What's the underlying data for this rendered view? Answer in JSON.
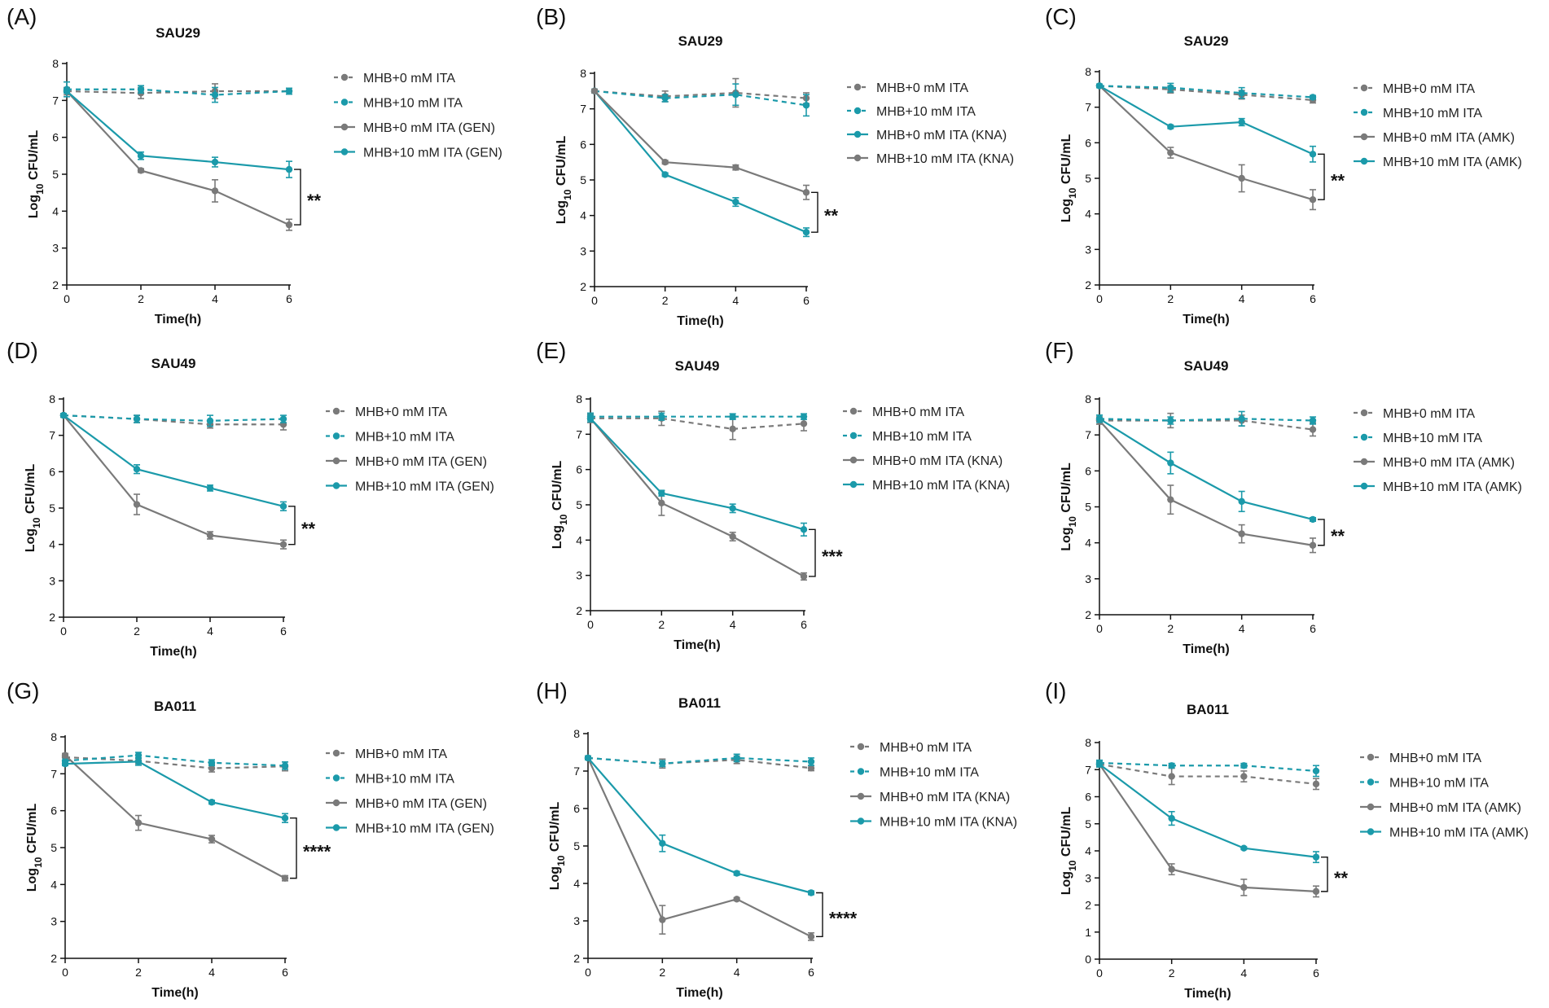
{
  "colors": {
    "gray": "#7a7a7a",
    "teal": "#1b9aaa",
    "axis": "#111111"
  },
  "chart_data": [
    {
      "panel": "(A)",
      "type": "line",
      "title": "SAU29",
      "xlabel": "Time(h)",
      "ylabel_main": "Log",
      "ylabel_sub": "10",
      "ylabel_tail": " CFU/mL",
      "x": [
        0,
        2,
        4,
        6
      ],
      "xlim": [
        0,
        6
      ],
      "ylim": [
        2,
        8
      ],
      "xticks": [
        "0",
        "2",
        "4",
        "6"
      ],
      "yticks": [
        "2",
        "3",
        "4",
        "5",
        "6",
        "7",
        "8"
      ],
      "series": [
        {
          "name": "MHB+0 mM ITA",
          "color": "gray",
          "dashed": true,
          "values": [
            7.25,
            7.2,
            7.25,
            7.25
          ],
          "errors": [
            0.1,
            0.15,
            0.2,
            0.08
          ]
        },
        {
          "name": "MHB+10 mM ITA",
          "color": "teal",
          "dashed": true,
          "values": [
            7.3,
            7.3,
            7.15,
            7.25
          ],
          "errors": [
            0.2,
            0.1,
            0.2,
            0.08
          ]
        },
        {
          "name": "MHB+0 mM ITA (GEN)",
          "color": "gray",
          "dashed": false,
          "values": [
            7.25,
            5.1,
            4.55,
            3.63
          ],
          "errors": [
            0.05,
            0.05,
            0.3,
            0.15
          ]
        },
        {
          "name": "MHB+10 mM ITA (GEN)",
          "color": "teal",
          "dashed": false,
          "values": [
            7.25,
            5.5,
            5.33,
            5.13
          ],
          "errors": [
            0.05,
            0.1,
            0.13,
            0.22
          ]
        }
      ],
      "significance": "**",
      "sig_between": [
        2,
        3
      ]
    },
    {
      "panel": "(B)",
      "type": "line",
      "title": "SAU29",
      "xlabel": "Time(h)",
      "ylabel_main": "Log",
      "ylabel_sub": "10",
      "ylabel_tail": " CFU/mL",
      "x": [
        0,
        2,
        4,
        6
      ],
      "xlim": [
        0,
        6
      ],
      "ylim": [
        2,
        8
      ],
      "xticks": [
        "0",
        "2",
        "4",
        "6"
      ],
      "yticks": [
        "2",
        "3",
        "4",
        "5",
        "6",
        "7",
        "8"
      ],
      "series": [
        {
          "name": "MHB+0 mM ITA",
          "color": "gray",
          "dashed": true,
          "values": [
            7.5,
            7.35,
            7.45,
            7.3
          ],
          "errors": [
            0.05,
            0.15,
            0.4,
            0.15
          ]
        },
        {
          "name": "MHB+10 mM ITA",
          "color": "teal",
          "dashed": true,
          "values": [
            7.5,
            7.3,
            7.4,
            7.1
          ],
          "errors": [
            0.05,
            0.1,
            0.3,
            0.3
          ]
        },
        {
          "name": "MHB+0 mM ITA (KNA)",
          "color": "teal",
          "dashed": false,
          "values": [
            7.5,
            5.15,
            4.38,
            3.53
          ],
          "errors": [
            0.05,
            0.05,
            0.12,
            0.12
          ]
        },
        {
          "name": "MHB+10 mM ITA (KNA)",
          "color": "gray",
          "dashed": false,
          "values": [
            7.5,
            5.5,
            5.35,
            4.65
          ],
          "errors": [
            0.05,
            0.05,
            0.07,
            0.2
          ]
        }
      ],
      "significance": "**",
      "sig_between": [
        2,
        3
      ]
    },
    {
      "panel": "(C)",
      "type": "line",
      "title": "SAU29",
      "xlabel": "Time(h)",
      "ylabel_main": "Log",
      "ylabel_sub": "10",
      "ylabel_tail": " CFU/mL",
      "x": [
        0,
        2,
        4,
        6
      ],
      "xlim": [
        0,
        6
      ],
      "ylim": [
        2,
        8
      ],
      "xticks": [
        "0",
        "2",
        "4",
        "6"
      ],
      "yticks": [
        "2",
        "3",
        "4",
        "5",
        "6",
        "7",
        "8"
      ],
      "series": [
        {
          "name": "MHB+0 mM ITA",
          "color": "gray",
          "dashed": true,
          "values": [
            7.6,
            7.5,
            7.35,
            7.2
          ],
          "errors": [
            0.05,
            0.1,
            0.12,
            0.08
          ]
        },
        {
          "name": "MHB+10 mM ITA",
          "color": "teal",
          "dashed": true,
          "values": [
            7.6,
            7.55,
            7.4,
            7.28
          ],
          "errors": [
            0.05,
            0.12,
            0.15,
            0.05
          ]
        },
        {
          "name": "MHB+0 mM ITA (AMK)",
          "color": "gray",
          "dashed": false,
          "values": [
            7.6,
            5.72,
            5.0,
            4.4
          ],
          "errors": [
            0.05,
            0.15,
            0.38,
            0.28
          ]
        },
        {
          "name": "MHB+10 mM ITA (AMK)",
          "color": "teal",
          "dashed": false,
          "values": [
            7.6,
            6.45,
            6.58,
            5.68
          ],
          "errors": [
            0.05,
            0.05,
            0.1,
            0.22
          ]
        }
      ],
      "significance": "**",
      "sig_between": [
        2,
        3
      ]
    },
    {
      "panel": "(D)",
      "type": "line",
      "title": "SAU49",
      "xlabel": "Time(h)",
      "ylabel_main": "Log",
      "ylabel_sub": "10",
      "ylabel_tail": " CFU/mL",
      "x": [
        0,
        2,
        4,
        6
      ],
      "xlim": [
        0,
        6
      ],
      "ylim": [
        2,
        8
      ],
      "xticks": [
        "0",
        "2",
        "4",
        "6"
      ],
      "yticks": [
        "2",
        "3",
        "4",
        "5",
        "6",
        "7",
        "8"
      ],
      "series": [
        {
          "name": "MHB+0 mM ITA",
          "color": "gray",
          "dashed": true,
          "values": [
            7.55,
            7.45,
            7.3,
            7.3
          ],
          "errors": [
            0.05,
            0.1,
            0.1,
            0.15
          ]
        },
        {
          "name": "MHB+10 mM ITA",
          "color": "teal",
          "dashed": true,
          "values": [
            7.55,
            7.45,
            7.4,
            7.45
          ],
          "errors": [
            0.05,
            0.1,
            0.15,
            0.1
          ]
        },
        {
          "name": "MHB+0 mM ITA (GEN)",
          "color": "gray",
          "dashed": false,
          "values": [
            7.55,
            5.1,
            4.25,
            4.0
          ],
          "errors": [
            0.05,
            0.28,
            0.1,
            0.12
          ]
        },
        {
          "name": "MHB+10 mM ITA (GEN)",
          "color": "teal",
          "dashed": false,
          "values": [
            7.55,
            6.07,
            5.55,
            5.05
          ],
          "errors": [
            0.05,
            0.12,
            0.08,
            0.12
          ]
        }
      ],
      "significance": "**",
      "sig_between": [
        2,
        3
      ]
    },
    {
      "panel": "(E)",
      "type": "line",
      "title": "SAU49",
      "xlabel": "Time(h)",
      "ylabel_main": "Log",
      "ylabel_sub": "10",
      "ylabel_tail": " CFU/mL",
      "x": [
        0,
        2,
        4,
        6
      ],
      "xlim": [
        0,
        6
      ],
      "ylim": [
        2,
        8
      ],
      "xticks": [
        "0",
        "2",
        "4",
        "6"
      ],
      "yticks": [
        "2",
        "3",
        "4",
        "5",
        "6",
        "7",
        "8"
      ],
      "series": [
        {
          "name": "MHB+0 mM ITA",
          "color": "gray",
          "dashed": true,
          "values": [
            7.45,
            7.45,
            7.15,
            7.3
          ],
          "errors": [
            0.12,
            0.2,
            0.3,
            0.2
          ]
        },
        {
          "name": "MHB+10 mM ITA",
          "color": "teal",
          "dashed": true,
          "values": [
            7.5,
            7.5,
            7.5,
            7.5
          ],
          "errors": [
            0.1,
            0.1,
            0.08,
            0.08
          ]
        },
        {
          "name": "MHB+0 mM ITA (KNA)",
          "color": "gray",
          "dashed": false,
          "values": [
            7.45,
            5.05,
            4.1,
            2.97
          ],
          "errors": [
            0.1,
            0.35,
            0.12,
            0.1
          ]
        },
        {
          "name": "MHB+10 mM ITA (KNA)",
          "color": "teal",
          "dashed": false,
          "values": [
            7.45,
            5.33,
            4.9,
            4.3
          ],
          "errors": [
            0.1,
            0.08,
            0.12,
            0.18
          ]
        }
      ],
      "significance": "***",
      "sig_between": [
        2,
        3
      ]
    },
    {
      "panel": "(F)",
      "type": "line",
      "title": "SAU49",
      "xlabel": "Time(h)",
      "ylabel_main": "Log",
      "ylabel_sub": "10",
      "ylabel_tail": " CFU/mL",
      "x": [
        0,
        2,
        4,
        6
      ],
      "xlim": [
        0,
        6
      ],
      "ylim": [
        2,
        8
      ],
      "xticks": [
        "0",
        "2",
        "4",
        "6"
      ],
      "yticks": [
        "2",
        "3",
        "4",
        "5",
        "6",
        "7",
        "8"
      ],
      "series": [
        {
          "name": "MHB+0 mM ITA",
          "color": "gray",
          "dashed": true,
          "values": [
            7.4,
            7.4,
            7.4,
            7.15
          ],
          "errors": [
            0.1,
            0.2,
            0.15,
            0.18
          ]
        },
        {
          "name": "MHB+10 mM ITA",
          "color": "teal",
          "dashed": true,
          "values": [
            7.45,
            7.4,
            7.45,
            7.4
          ],
          "errors": [
            0.1,
            0.1,
            0.2,
            0.1
          ]
        },
        {
          "name": "MHB+0 mM ITA (AMK)",
          "color": "gray",
          "dashed": false,
          "values": [
            7.4,
            5.2,
            4.25,
            3.93
          ],
          "errors": [
            0.1,
            0.4,
            0.25,
            0.2
          ]
        },
        {
          "name": "MHB+10 mM ITA (AMK)",
          "color": "teal",
          "dashed": false,
          "values": [
            7.45,
            6.22,
            5.15,
            4.65
          ],
          "errors": [
            0.1,
            0.3,
            0.28,
            0.05
          ]
        }
      ],
      "significance": "**",
      "sig_between": [
        2,
        3
      ]
    },
    {
      "panel": "(G)",
      "type": "line",
      "title": "BA011",
      "xlabel": "Time(h)",
      "ylabel_main": "Log",
      "ylabel_sub": "10",
      "ylabel_tail": " CFU/mL",
      "x": [
        0,
        2,
        4,
        6
      ],
      "xlim": [
        0,
        6
      ],
      "ylim": [
        2,
        8
      ],
      "xticks": [
        "0",
        "2",
        "4",
        "6"
      ],
      "yticks": [
        "2",
        "3",
        "4",
        "5",
        "6",
        "7",
        "8"
      ],
      "series": [
        {
          "name": "MHB+0 mM ITA",
          "color": "gray",
          "dashed": true,
          "values": [
            7.45,
            7.35,
            7.15,
            7.2
          ],
          "errors": [
            0.1,
            0.08,
            0.1,
            0.12
          ]
        },
        {
          "name": "MHB+10 mM ITA",
          "color": "teal",
          "dashed": true,
          "values": [
            7.35,
            7.5,
            7.3,
            7.22
          ],
          "errors": [
            0.1,
            0.08,
            0.08,
            0.1
          ]
        },
        {
          "name": "MHB+0 mM ITA (GEN)",
          "color": "gray",
          "dashed": false,
          "values": [
            7.5,
            5.67,
            5.23,
            4.17
          ],
          "errors": [
            0.05,
            0.2,
            0.1,
            0.07
          ]
        },
        {
          "name": "MHB+10 mM ITA (GEN)",
          "color": "teal",
          "dashed": false,
          "values": [
            7.27,
            7.33,
            6.23,
            5.8
          ],
          "errors": [
            0.05,
            0.1,
            0.05,
            0.12
          ]
        }
      ],
      "significance": "****",
      "sig_between": [
        2,
        3
      ]
    },
    {
      "panel": "(H)",
      "type": "line",
      "title": "BA011",
      "xlabel": "Time(h)",
      "ylabel_main": "Log",
      "ylabel_sub": "10",
      "ylabel_tail": " CFU/mL",
      "x": [
        0,
        2,
        4,
        6
      ],
      "xlim": [
        0,
        6
      ],
      "ylim": [
        2,
        8
      ],
      "xticks": [
        "0",
        "2",
        "4",
        "6"
      ],
      "yticks": [
        "2",
        "3",
        "4",
        "5",
        "6",
        "7",
        "8"
      ],
      "series": [
        {
          "name": "MHB+0 mM ITA",
          "color": "gray",
          "dashed": true,
          "values": [
            7.35,
            7.2,
            7.3,
            7.08
          ],
          "errors": [
            0.05,
            0.12,
            0.1,
            0.07
          ]
        },
        {
          "name": "MHB+10 mM ITA",
          "color": "teal",
          "dashed": true,
          "values": [
            7.35,
            7.2,
            7.35,
            7.25
          ],
          "errors": [
            0.05,
            0.08,
            0.1,
            0.1
          ]
        },
        {
          "name": "MHB+0 mM ITA (KNA)",
          "color": "gray",
          "dashed": false,
          "values": [
            7.35,
            3.03,
            3.58,
            2.58
          ],
          "errors": [
            0.05,
            0.38,
            0.04,
            0.1
          ]
        },
        {
          "name": "MHB+10 mM ITA (KNA)",
          "color": "teal",
          "dashed": false,
          "values": [
            7.35,
            5.07,
            4.27,
            3.75
          ],
          "errors": [
            0.05,
            0.22,
            0.05,
            0.05
          ]
        }
      ],
      "significance": "****",
      "sig_between": [
        2,
        3
      ]
    },
    {
      "panel": "(I)",
      "type": "line",
      "title": "BA011",
      "xlabel": "Time(h)",
      "ylabel_main": "Log",
      "ylabel_sub": "10",
      "ylabel_tail": " CFU/mL",
      "x": [
        0,
        2,
        4,
        6
      ],
      "xlim": [
        0,
        6
      ],
      "ylim": [
        0,
        8
      ],
      "xticks": [
        "0",
        "2",
        "4",
        "6"
      ],
      "yticks": [
        "0",
        "1",
        "2",
        "3",
        "4",
        "5",
        "6",
        "7",
        "8"
      ],
      "series": [
        {
          "name": "MHB+0 mM ITA",
          "color": "gray",
          "dashed": true,
          "values": [
            7.2,
            6.75,
            6.75,
            6.47
          ],
          "errors": [
            0.1,
            0.3,
            0.2,
            0.2
          ]
        },
        {
          "name": "MHB+10 mM ITA",
          "color": "teal",
          "dashed": true,
          "values": [
            7.25,
            7.15,
            7.15,
            6.95
          ],
          "errors": [
            0.1,
            0.08,
            0.08,
            0.2
          ]
        },
        {
          "name": "MHB+0 mM ITA (AMK)",
          "color": "gray",
          "dashed": false,
          "values": [
            7.2,
            3.32,
            2.65,
            2.5
          ],
          "errors": [
            0.1,
            0.2,
            0.3,
            0.2
          ]
        },
        {
          "name": "MHB+10 mM ITA (AMK)",
          "color": "teal",
          "dashed": false,
          "values": [
            7.2,
            5.2,
            4.1,
            3.77
          ],
          "errors": [
            0.1,
            0.25,
            0.05,
            0.2
          ]
        }
      ],
      "significance": "**",
      "sig_between": [
        2,
        3
      ]
    }
  ]
}
